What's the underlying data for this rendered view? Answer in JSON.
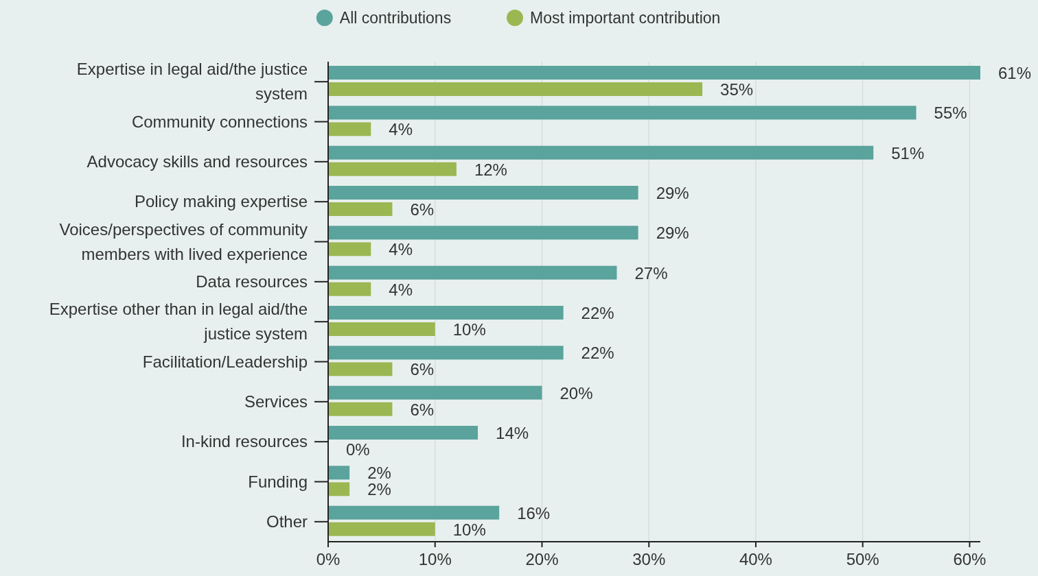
{
  "chart_data": {
    "type": "bar",
    "orientation": "horizontal",
    "categories": [
      "Expertise in legal aid/the justice system",
      "Community connections",
      "Advocacy skills and resources",
      "Policy making expertise",
      "Voices/perspectives of community members with lived experience",
      "Data resources",
      "Expertise other than in legal aid/the justice system",
      "Facilitation/Leadership",
      "Services",
      "In-kind resources",
      "Funding",
      "Other"
    ],
    "series": [
      {
        "name": "All contributions",
        "color": "#5ba39d",
        "values": [
          61,
          55,
          51,
          29,
          29,
          27,
          22,
          22,
          20,
          14,
          2,
          16
        ],
        "value_labels": [
          "61%",
          "55%",
          "51%",
          "29%",
          "29%",
          "27%",
          "22%",
          "22%",
          "20%",
          "14%",
          "2%",
          "16%"
        ]
      },
      {
        "name": "Most important contribution",
        "color": "#9bb752",
        "values": [
          35,
          4,
          12,
          6,
          4,
          4,
          10,
          6,
          6,
          0,
          2,
          10
        ],
        "value_labels": [
          "35%",
          "4%",
          "12%",
          "6%",
          "4%",
          "4%",
          "10%",
          "6%",
          "6%",
          "0%",
          "2%",
          "10%"
        ]
      }
    ],
    "xlim": [
      0,
      61
    ],
    "xticks": [
      {
        "value": 0,
        "label": "0%"
      },
      {
        "value": 10,
        "label": "10%"
      },
      {
        "value": 20,
        "label": "20%"
      },
      {
        "value": 30,
        "label": "30%"
      },
      {
        "value": 40,
        "label": "40%"
      },
      {
        "value": 50,
        "label": "50%"
      },
      {
        "value": 60,
        "label": "60%"
      }
    ],
    "grid": "x",
    "legend": "top"
  }
}
